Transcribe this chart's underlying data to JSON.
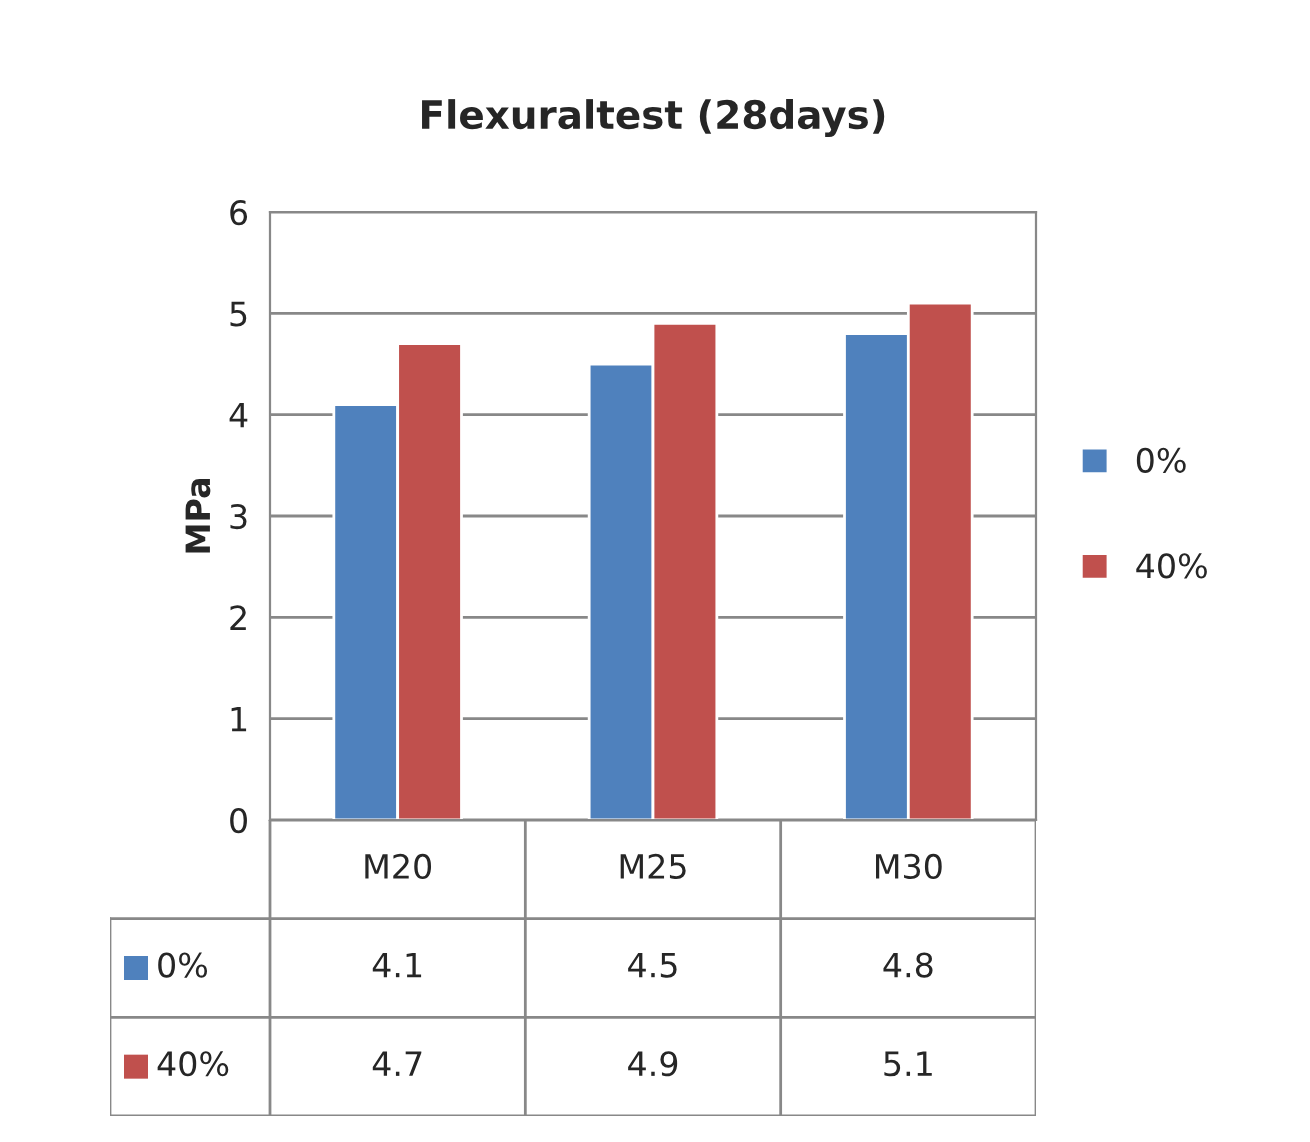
{
  "chart_data": {
    "type": "bar",
    "title": "Flexuraltest (28days)",
    "ylabel": "MPa",
    "categories": [
      "M20",
      "M25",
      "M30"
    ],
    "series": [
      {
        "name": "0%",
        "color": "#4f81bd",
        "values": [
          4.1,
          4.5,
          4.8
        ]
      },
      {
        "name": "40%",
        "color": "#c0504d",
        "values": [
          4.7,
          4.9,
          5.1
        ]
      }
    ],
    "ylim": [
      0,
      6
    ],
    "yticks": [
      0,
      1,
      2,
      3,
      4,
      5,
      6
    ],
    "grid": "y",
    "legend": "right",
    "data_labels": true
  }
}
